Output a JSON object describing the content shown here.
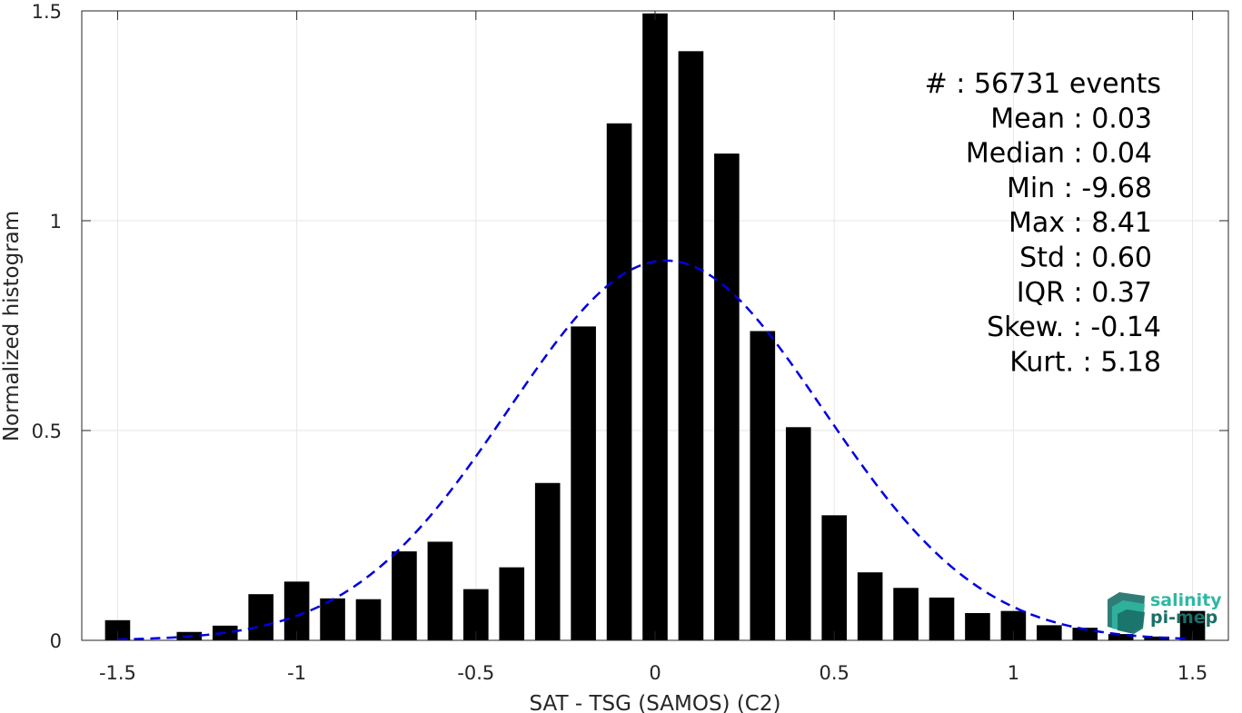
{
  "chart_data": {
    "type": "bar",
    "xlabel": "SAT - TSG (SAMOS) (C2)",
    "ylabel": "Normalized histogram",
    "xlim": [
      -1.6,
      1.6
    ],
    "ylim": [
      0,
      1.5
    ],
    "xticks": [
      -1.5,
      -1,
      -0.5,
      0,
      0.5,
      1,
      1.5
    ],
    "xtick_labels": [
      "-1.5",
      "-1",
      "-0.5",
      "0",
      "0.5",
      "1",
      "1.5"
    ],
    "yticks": [
      0,
      0.5,
      1,
      1.5
    ],
    "ytick_labels": [
      "0",
      "0.5",
      "1",
      "1.5"
    ],
    "grid": true,
    "bar_color": "#000000",
    "bin_width": 0.1,
    "bars": {
      "x": [
        -1.5,
        -1.4,
        -1.3,
        -1.2,
        -1.1,
        -1.0,
        -0.9,
        -0.8,
        -0.7,
        -0.6,
        -0.5,
        -0.4,
        -0.3,
        -0.2,
        -0.1,
        0.0,
        0.1,
        0.2,
        0.3,
        0.4,
        0.5,
        0.6,
        0.7,
        0.8,
        0.9,
        1.0,
        1.1,
        1.2,
        1.3,
        1.4,
        1.5
      ],
      "values": [
        0.048,
        0.0,
        0.02,
        0.035,
        0.11,
        0.14,
        0.1,
        0.098,
        0.212,
        0.235,
        0.122,
        0.174,
        0.375,
        0.748,
        1.232,
        1.494,
        1.404,
        1.16,
        0.737,
        0.508,
        0.298,
        0.162,
        0.125,
        0.102,
        0.065,
        0.07,
        0.036,
        0.03,
        0.015,
        0.009,
        0.07
      ]
    },
    "fit_curve": {
      "style": "dashed",
      "color": "#0000e0",
      "mean": 0.03,
      "std": 0.44,
      "peak": 0.905,
      "x_range": [
        -1.5,
        1.5
      ]
    },
    "stats": [
      {
        "label": "#  : 56731 events"
      },
      {
        "label": "Mean : 0.03"
      },
      {
        "label": "Median : 0.04"
      },
      {
        "label": "Min : -9.68"
      },
      {
        "label": "Max : 8.41"
      },
      {
        "label": "Std : 0.60"
      },
      {
        "label": "IQR : 0.37"
      },
      {
        "label": "Skew. : -0.14"
      },
      {
        "label": "Kurt. : 5.18"
      }
    ]
  },
  "logo": {
    "line1": "salinity",
    "line2": "pi-mep",
    "color_dark": "#1a6f68",
    "color_light": "#2fb8a2"
  }
}
